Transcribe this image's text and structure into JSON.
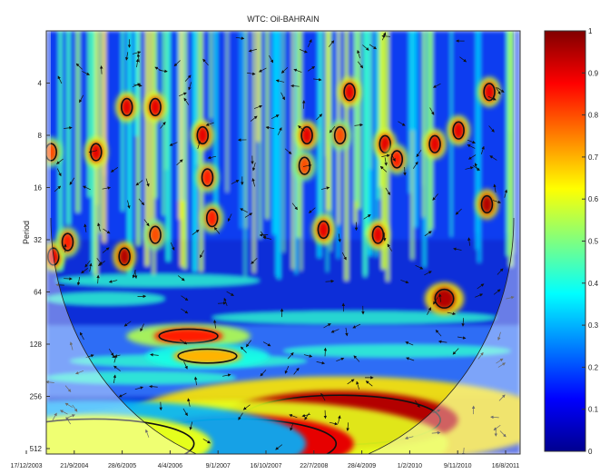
{
  "chart_data": {
    "type": "heatmap",
    "title": "WTC: Oil-BAHRAIN",
    "xlabel": "",
    "ylabel": "Period",
    "x_tick_labels": [
      "17/12/2003",
      "21/9/2004",
      "28/6/2005",
      "4/4/2006",
      "9/1/2007",
      "16/10/2007",
      "22/7/2008",
      "28/4/2009",
      "1/2/2010",
      "9/11/2010",
      "16/8/2011"
    ],
    "y_tick_labels": [
      "4",
      "8",
      "16",
      "32",
      "64",
      "128",
      "256",
      "512"
    ],
    "y_scale": "log2",
    "y_range": [
      2,
      650
    ],
    "y_reversed": true,
    "colorbar": {
      "range": [
        0,
        1
      ],
      "ticks": [
        "0",
        "0.1",
        "0.2",
        "0.3",
        "0.4",
        "0.5",
        "0.6",
        "0.7",
        "0.8",
        "0.9",
        "1"
      ],
      "colormap": "jet"
    },
    "coherence_regions": [
      {
        "period": 40,
        "t": 0.015,
        "value": 0.9
      },
      {
        "period": 33,
        "t": 0.045,
        "value": 0.85
      },
      {
        "period": 40,
        "t": 0.165,
        "value": 0.95
      },
      {
        "period": 10,
        "t": 0.01,
        "value": 0.8
      },
      {
        "period": 5.5,
        "t": 0.17,
        "value": 0.9
      },
      {
        "period": 5.5,
        "t": 0.23,
        "value": 0.9
      },
      {
        "period": 10,
        "t": 0.105,
        "value": 0.9
      },
      {
        "period": 8,
        "t": 0.33,
        "value": 0.9
      },
      {
        "period": 14,
        "t": 0.34,
        "value": 0.85
      },
      {
        "period": 30,
        "t": 0.23,
        "value": 0.8
      },
      {
        "period": 24,
        "t": 0.35,
        "value": 0.85
      },
      {
        "period": 8,
        "t": 0.55,
        "value": 0.9
      },
      {
        "period": 12,
        "t": 0.545,
        "value": 0.8
      },
      {
        "period": 28,
        "t": 0.585,
        "value": 0.9
      },
      {
        "period": 4.5,
        "t": 0.64,
        "value": 0.9
      },
      {
        "period": 8,
        "t": 0.62,
        "value": 0.8
      },
      {
        "period": 30,
        "t": 0.7,
        "value": 0.9
      },
      {
        "period": 9,
        "t": 0.715,
        "value": 0.9
      },
      {
        "period": 11,
        "t": 0.74,
        "value": 0.85
      },
      {
        "period": 9,
        "t": 0.82,
        "value": 0.9
      },
      {
        "period": 7.5,
        "t": 0.87,
        "value": 0.9
      },
      {
        "period": 4.5,
        "t": 0.935,
        "value": 0.9
      },
      {
        "period": 20,
        "t": 0.93,
        "value": 0.95
      },
      {
        "period": 70,
        "t": 0.84,
        "value": 0.95
      },
      {
        "period": 115,
        "t": 0.3,
        "value": 0.85
      },
      {
        "period": 150,
        "t": 0.34,
        "value": 0.7
      },
      {
        "period": 350,
        "t": 0.62,
        "value": 0.95
      },
      {
        "period": 480,
        "t": 0.4,
        "value": 0.9
      },
      {
        "period": 480,
        "t": 0.1,
        "value": 0.6
      }
    ]
  }
}
